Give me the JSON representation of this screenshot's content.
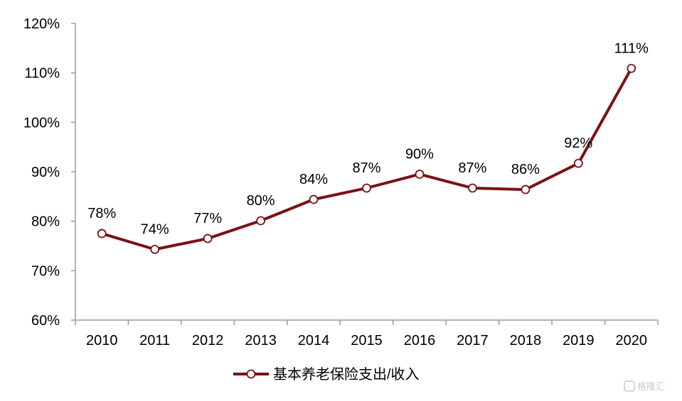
{
  "chart_data": {
    "type": "line",
    "title": "",
    "xlabel": "",
    "ylabel": "",
    "categories": [
      "2010",
      "2011",
      "2012",
      "2013",
      "2014",
      "2015",
      "2016",
      "2017",
      "2018",
      "2019",
      "2020"
    ],
    "series": [
      {
        "name": "基本养老保险支出/收入",
        "values": [
          77.5,
          74.3,
          76.5,
          80.1,
          84.4,
          86.7,
          89.5,
          86.7,
          86.4,
          91.7,
          110.9
        ],
        "data_labels": [
          "78%",
          "74%",
          "77%",
          "80%",
          "84%",
          "87%",
          "90%",
          "87%",
          "86%",
          "92%",
          "111%"
        ],
        "color": "#7b1113",
        "marker": "hollow-circle"
      }
    ],
    "ylim": [
      60,
      120
    ],
    "yticks": [
      60,
      70,
      80,
      90,
      100,
      110,
      120
    ],
    "ytick_labels": [
      "60%",
      "70%",
      "80%",
      "90%",
      "100%",
      "110%",
      "120%"
    ],
    "grid": false,
    "legend_position": "bottom-center"
  },
  "watermark": {
    "text": "格隆汇"
  }
}
